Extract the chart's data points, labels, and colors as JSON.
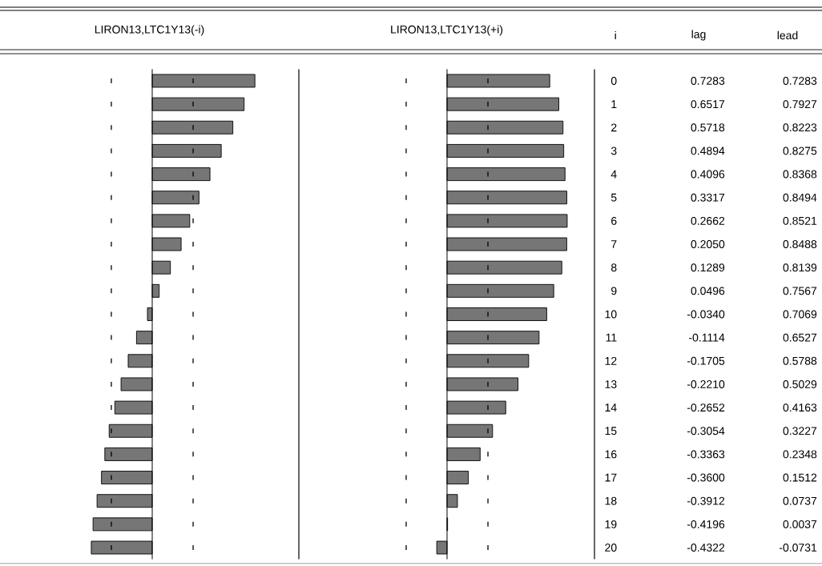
{
  "chart_data": [
    {
      "type": "bar",
      "orientation": "horizontal",
      "title": "LIRON13,LTC1Y13(-i)",
      "categories": [
        "0",
        "1",
        "2",
        "3",
        "4",
        "5",
        "6",
        "7",
        "8",
        "9",
        "10",
        "11",
        "12",
        "13",
        "14",
        "15",
        "16",
        "17",
        "18",
        "19",
        "20"
      ],
      "values": [
        0.7283,
        0.6517,
        0.5718,
        0.4894,
        0.4096,
        0.3317,
        0.2662,
        0.205,
        0.1289,
        0.0496,
        -0.034,
        -0.1114,
        -0.1705,
        -0.221,
        -0.2652,
        -0.3054,
        -0.3363,
        -0.36,
        -0.3912,
        -0.4196,
        -0.4322
      ],
      "value_labels": [
        "0.7283",
        "0.6517",
        "0.5718",
        "0.4894",
        "0.4096",
        "0.3317",
        "0.2662",
        "0.2050",
        "0.1289",
        "0.0496",
        "-0.0340",
        "-0.1114",
        "-0.1705",
        "-0.2210",
        "-0.2652",
        "-0.3054",
        "-0.3363",
        "-0.3600",
        "-0.3912",
        "-0.4196",
        "-0.4322"
      ],
      "color": "#767676",
      "ref_lines": [
        {
          "axis": "x",
          "value": -0.29,
          "line_style": "dashed"
        },
        {
          "axis": "x",
          "value": 0.29,
          "line_style": "dashed"
        }
      ],
      "tick_labels": false,
      "annotations": [
        "lag"
      ]
    },
    {
      "type": "bar",
      "orientation": "horizontal",
      "title": "LIRON13,LTC1Y13(+i)",
      "categories": [
        "0",
        "1",
        "2",
        "3",
        "4",
        "5",
        "6",
        "7",
        "8",
        "9",
        "10",
        "11",
        "12",
        "13",
        "14",
        "15",
        "16",
        "17",
        "18",
        "19",
        "20"
      ],
      "values": [
        0.7283,
        0.7927,
        0.8223,
        0.8275,
        0.8368,
        0.8494,
        0.8521,
        0.8488,
        0.8139,
        0.7567,
        0.7069,
        0.6527,
        0.5788,
        0.5029,
        0.4163,
        0.3227,
        0.2348,
        0.1512,
        0.0737,
        0.0037,
        -0.0731
      ],
      "value_labels": [
        "0.7283",
        "0.7927",
        "0.8223",
        "0.8275",
        "0.8368",
        "0.8494",
        "0.8521",
        "0.8488",
        "0.8139",
        "0.7567",
        "0.7069",
        "0.6527",
        "0.5788",
        "0.5029",
        "0.4163",
        "0.3227",
        "0.2348",
        "0.1512",
        "0.0737",
        "0.0037",
        "-0.0731"
      ],
      "color": "#767676",
      "ref_lines": [
        {
          "axis": "x",
          "value": -0.29,
          "line_style": "dashed"
        },
        {
          "axis": "x",
          "value": 0.29,
          "line_style": "dashed"
        }
      ],
      "tick_labels": "y",
      "annotations": [
        "i",
        "lead"
      ]
    }
  ]
}
